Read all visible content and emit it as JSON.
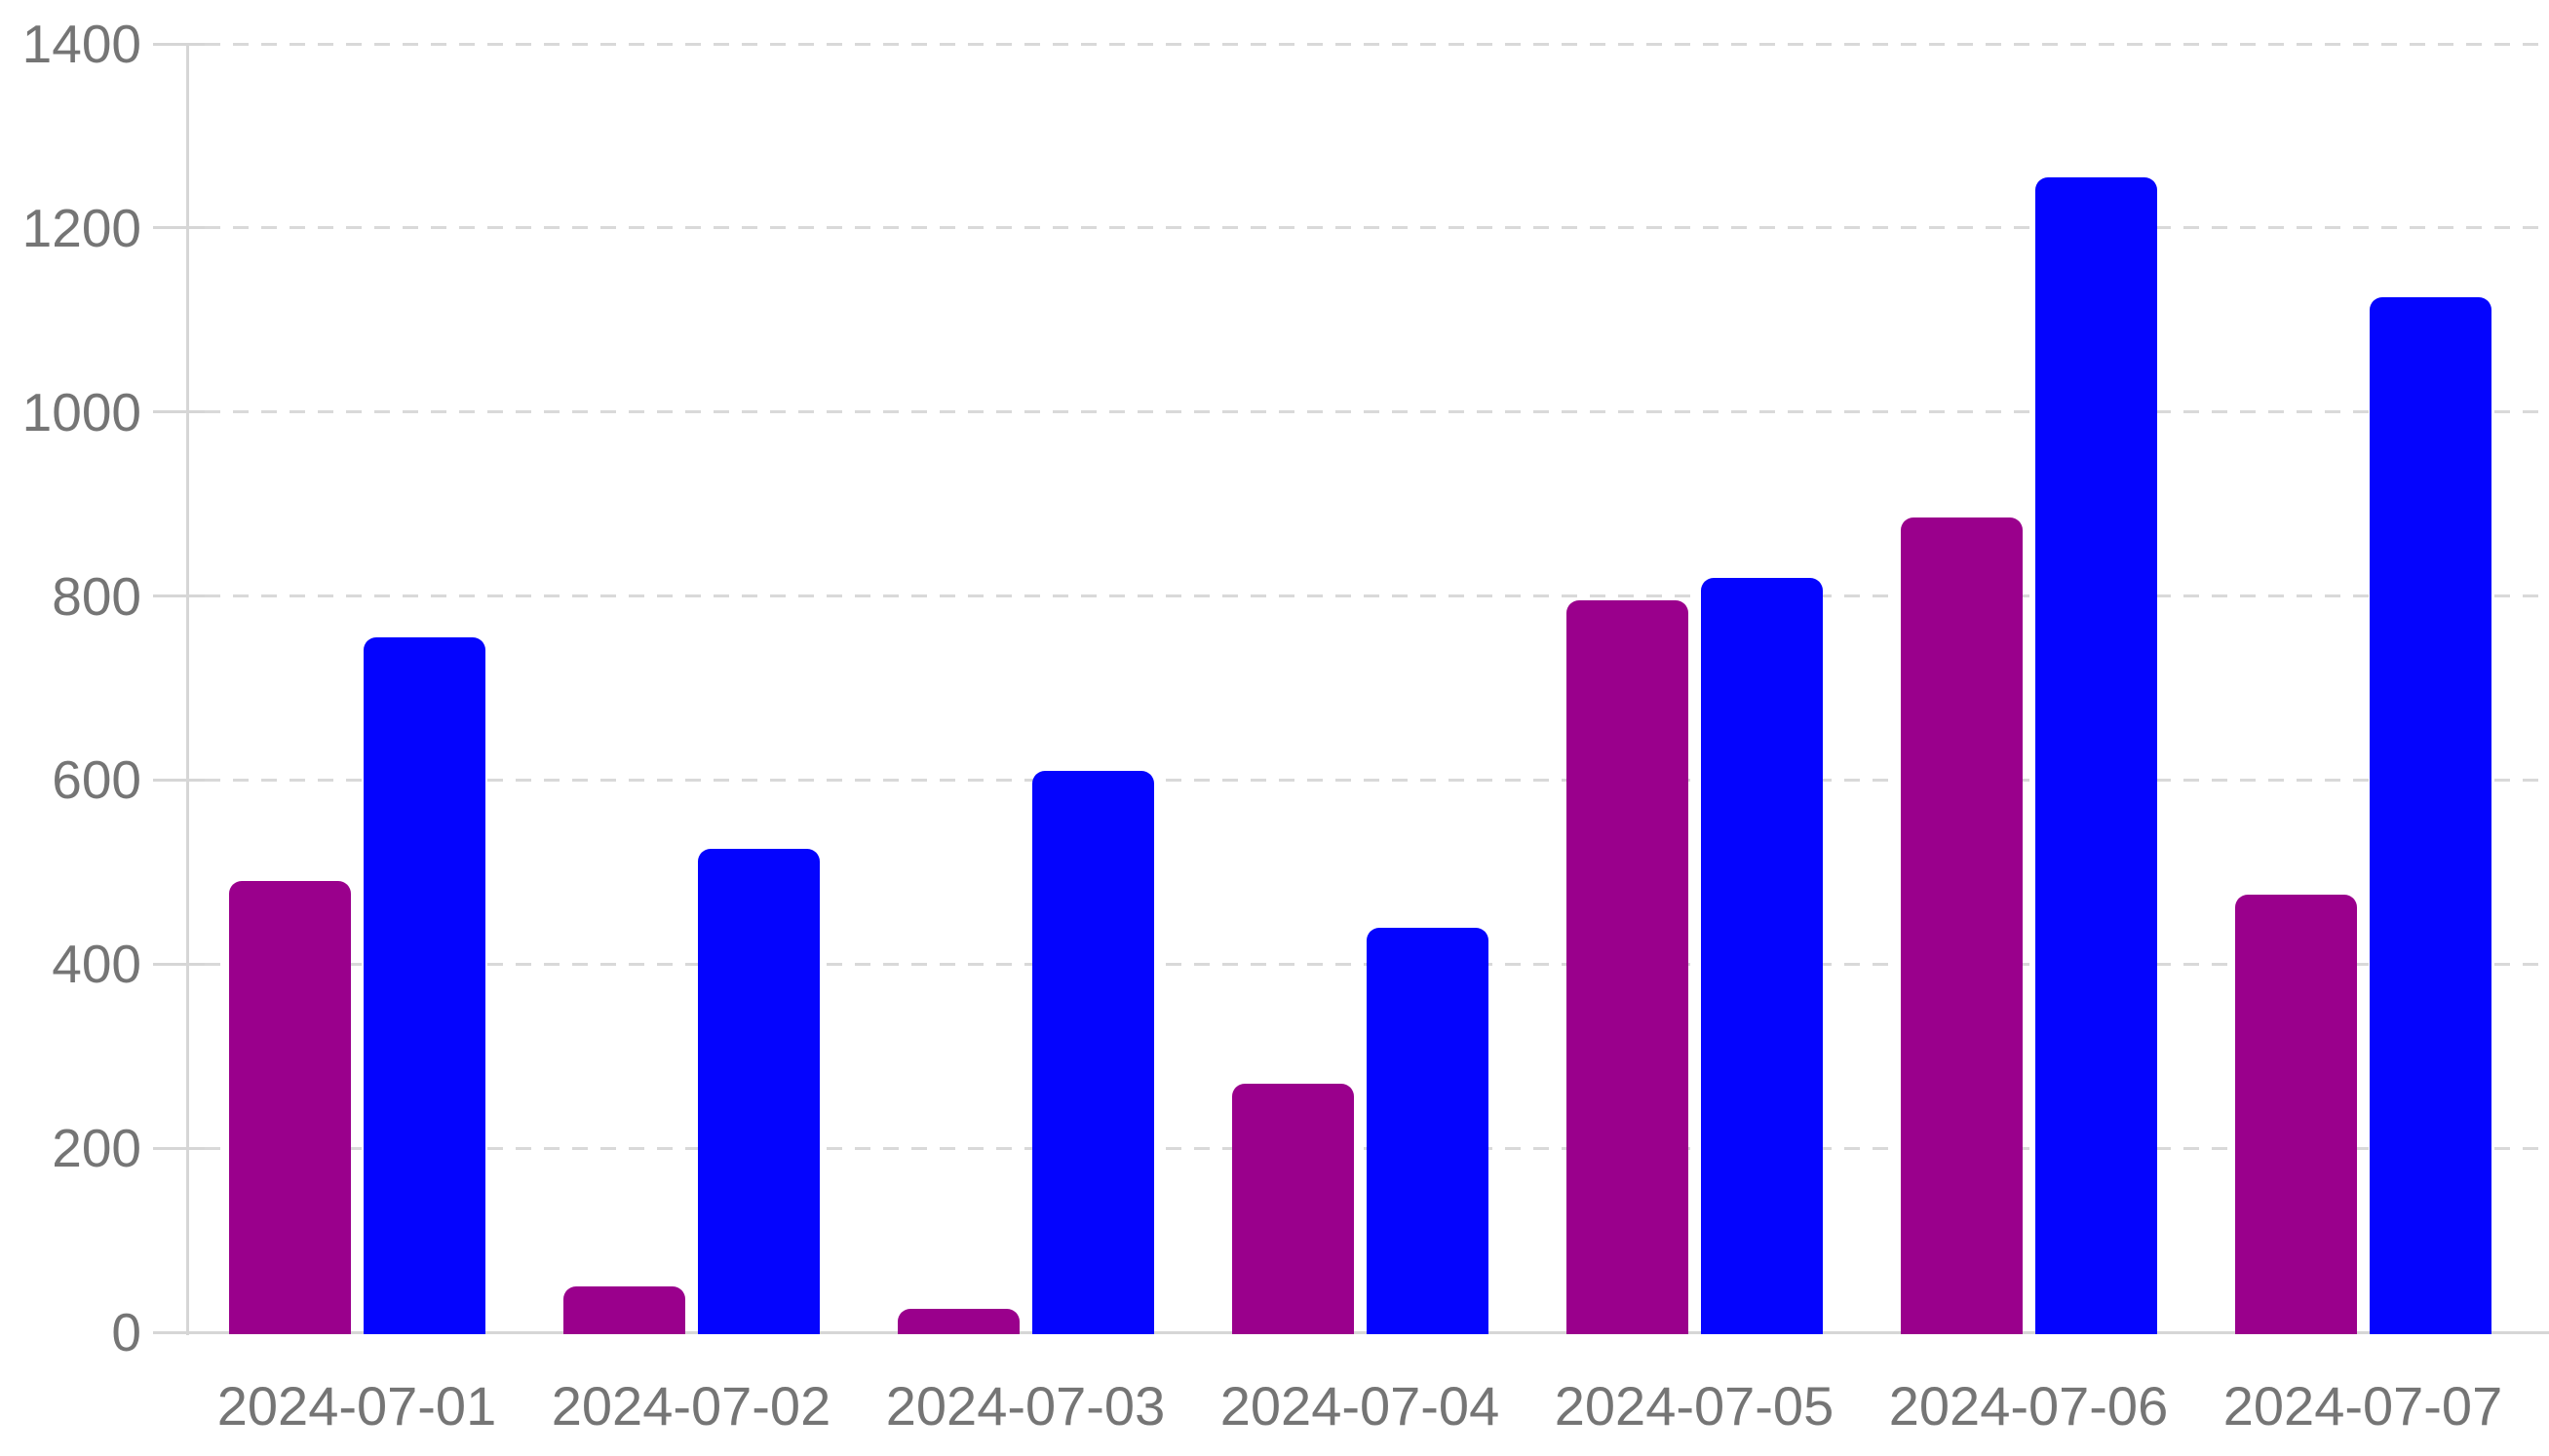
{
  "chart_data": {
    "type": "bar",
    "title": "",
    "xlabel": "",
    "ylabel": "",
    "categories": [
      "2024-07-01",
      "2024-07-02",
      "2024-07-03",
      "2024-07-04",
      "2024-07-05",
      "2024-07-06",
      "2024-07-07"
    ],
    "series": [
      {
        "name": "purple-series",
        "color": "#9A008C",
        "values": [
          490,
          50,
          25,
          270,
          795,
          885,
          475
        ]
      },
      {
        "name": "blue-series",
        "color": "#0404FE",
        "values": [
          755,
          525,
          610,
          440,
          820,
          1255,
          1125
        ]
      }
    ],
    "ylim": [
      0,
      1400
    ],
    "ytick_step": 200,
    "y_tick_labels": [
      "0",
      "200",
      "400",
      "600",
      "800",
      "1000",
      "1200",
      "1400"
    ],
    "grid": "horizontal-dashed",
    "legend_position": "none"
  },
  "style": {
    "background": "#FFFFFF",
    "axis_color": "#D6D6D6",
    "grid_color": "#D9D9D9",
    "label_color": "#757575"
  }
}
